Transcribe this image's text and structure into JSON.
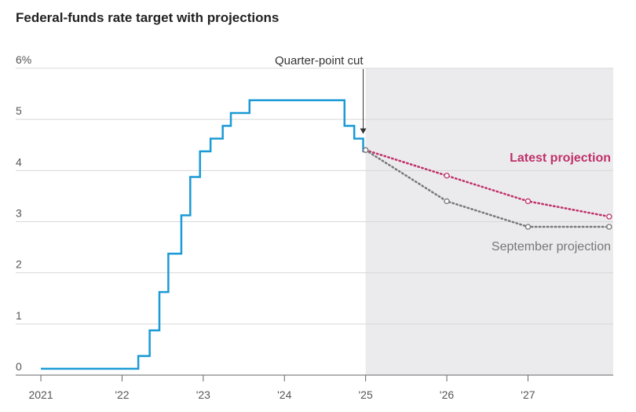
{
  "chart_data": {
    "type": "step-line",
    "title": "Federal-funds rate target with projections",
    "annotation": "Quarter-point cut",
    "x": [
      2021.0,
      2022.2,
      2022.34,
      2022.46,
      2022.57,
      2022.73,
      2022.84,
      2022.96,
      2023.09,
      2023.24,
      2023.34,
      2023.57,
      2024.74,
      2024.86,
      2024.97
    ],
    "values": [
      0.125,
      0.375,
      0.875,
      1.625,
      2.375,
      3.125,
      3.875,
      4.375,
      4.625,
      4.875,
      5.125,
      5.375,
      4.875,
      4.625,
      4.375
    ],
    "color": "#1a9ad6",
    "series": [
      {
        "name": "Latest projection",
        "color": "#c0306a",
        "x": [
          2025,
          2026,
          2027,
          2028
        ],
        "values": [
          4.4,
          3.9,
          3.4,
          3.1
        ]
      },
      {
        "name": "September projection",
        "color": "#777777",
        "x": [
          2025,
          2026,
          2027,
          2028
        ],
        "values": [
          4.4,
          3.4,
          2.9,
          2.9
        ]
      }
    ],
    "shade_from": 2025,
    "xlim": [
      2020.69,
      2028.05
    ],
    "xticks": [
      2021,
      {
        "value": 2022,
        "label": "'22"
      },
      {
        "value": 2023,
        "label": "'23"
      },
      {
        "value": 2024,
        "label": "'24"
      },
      {
        "value": 2025,
        "label": "'25"
      },
      {
        "value": 2026,
        "label": "'26"
      },
      {
        "value": 2027,
        "label": "'27"
      }
    ],
    "ylim": [
      0,
      6
    ],
    "yticks": [
      0,
      1,
      2,
      3,
      4,
      5,
      {
        "value": 6,
        "label": "6%"
      }
    ],
    "grid": true
  }
}
